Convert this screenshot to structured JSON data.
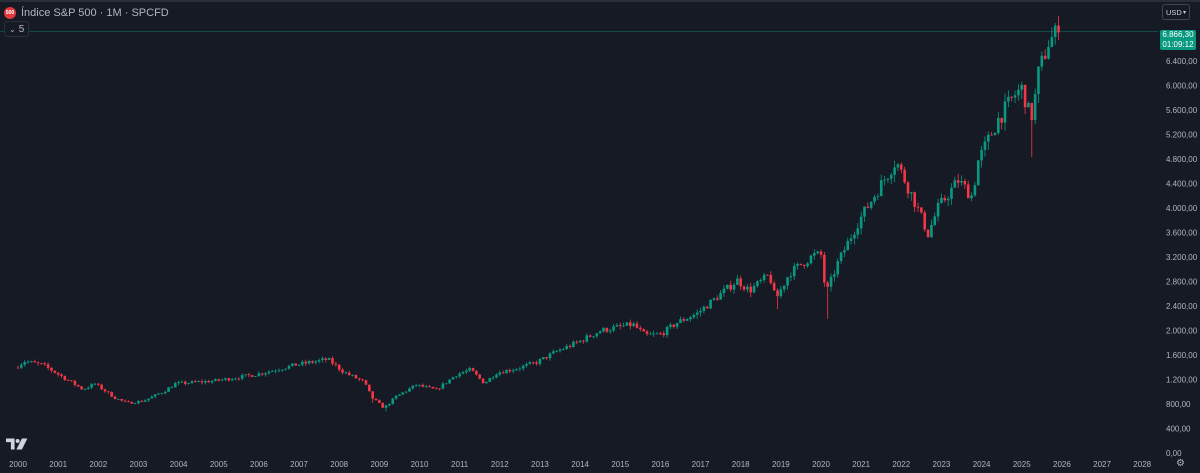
{
  "header": {
    "logo_text": "500",
    "symbol_title": "Índice S&P 500 · 1M · SPCFD",
    "collapse_count": "5",
    "currency": "USD"
  },
  "price_badge": {
    "price": "6.866,30",
    "countdown": "01:09:12"
  },
  "chart_data": {
    "type": "candlestick",
    "interval": "1M",
    "x_range": [
      2000.0,
      2028.5
    ],
    "y_range": [
      0,
      7000
    ],
    "up_color": "#089981",
    "down_color": "#f23645",
    "last_price": 6866.3,
    "x_tick_labels": [
      "2000",
      "2001",
      "2002",
      "2003",
      "2004",
      "2005",
      "2006",
      "2007",
      "2008",
      "2009",
      "2010",
      "2011",
      "2012",
      "2013",
      "2014",
      "2015",
      "2016",
      "2017",
      "2018",
      "2019",
      "2020",
      "2021",
      "2022",
      "2023",
      "2024",
      "2025",
      "2026",
      "2027",
      "2028"
    ],
    "y_tick_labels": [
      {
        "value": 0,
        "label": "0,00"
      },
      {
        "value": 400,
        "label": "400,00"
      },
      {
        "value": 800,
        "label": "800,00"
      },
      {
        "value": 1200,
        "label": "1.200,00"
      },
      {
        "value": 1600,
        "label": "1.600,00"
      },
      {
        "value": 2000,
        "label": "2.000,00"
      },
      {
        "value": 2400,
        "label": "2.400,00"
      },
      {
        "value": 2800,
        "label": "2.800,00"
      },
      {
        "value": 3200,
        "label": "3.200,00"
      },
      {
        "value": 3600,
        "label": "3.600,00"
      },
      {
        "value": 4000,
        "label": "4.000,00"
      },
      {
        "value": 4400,
        "label": "4.400,00"
      },
      {
        "value": 4800,
        "label": "4.800,00"
      },
      {
        "value": 5200,
        "label": "5.200,00"
      },
      {
        "value": 5600,
        "label": "5.600,00"
      },
      {
        "value": 6000,
        "label": "6.000,00"
      },
      {
        "value": 6400,
        "label": "6.400,00"
      }
    ],
    "close_anchors": [
      [
        2000.0,
        1394
      ],
      [
        2000.25,
        1499
      ],
      [
        2000.7,
        1436
      ],
      [
        2001.0,
        1320
      ],
      [
        2001.7,
        1040
      ],
      [
        2002.0,
        1130
      ],
      [
        2002.5,
        900
      ],
      [
        2002.8,
        815
      ],
      [
        2003.2,
        850
      ],
      [
        2003.7,
        1000
      ],
      [
        2004.0,
        1130
      ],
      [
        2005.0,
        1180
      ],
      [
        2006.0,
        1280
      ],
      [
        2007.0,
        1440
      ],
      [
        2007.8,
        1530
      ],
      [
        2008.2,
        1320
      ],
      [
        2008.7,
        1160
      ],
      [
        2008.9,
        900
      ],
      [
        2009.2,
        735
      ],
      [
        2009.5,
        920
      ],
      [
        2010.0,
        1110
      ],
      [
        2010.5,
        1030
      ],
      [
        2011.0,
        1280
      ],
      [
        2011.35,
        1360
      ],
      [
        2011.7,
        1140
      ],
      [
        2012.0,
        1310
      ],
      [
        2012.5,
        1380
      ],
      [
        2013.0,
        1480
      ],
      [
        2013.5,
        1660
      ],
      [
        2014.0,
        1800
      ],
      [
        2014.6,
        2000
      ],
      [
        2015.4,
        2100
      ],
      [
        2015.7,
        1920
      ],
      [
        2016.1,
        1940
      ],
      [
        2016.5,
        2130
      ],
      [
        2017.0,
        2280
      ],
      [
        2018.0,
        2820
      ],
      [
        2018.3,
        2650
      ],
      [
        2018.8,
        2910
      ],
      [
        2018.95,
        2500
      ],
      [
        2019.3,
        2940
      ],
      [
        2019.9,
        3230
      ],
      [
        2020.1,
        3230
      ],
      [
        2020.2,
        2580
      ],
      [
        2020.5,
        3100
      ],
      [
        2021.0,
        3760
      ],
      [
        2021.5,
        4300
      ],
      [
        2021.95,
        4770
      ],
      [
        2022.4,
        4130
      ],
      [
        2022.75,
        3580
      ],
      [
        2023.0,
        4000
      ],
      [
        2023.5,
        4450
      ],
      [
        2023.85,
        4190
      ],
      [
        2024.0,
        4770
      ],
      [
        2024.5,
        5450
      ],
      [
        2024.95,
        5880
      ],
      [
        2025.1,
        5950
      ],
      [
        2025.25,
        5580
      ],
      [
        2025.35,
        5500
      ],
      [
        2025.5,
        6200
      ],
      [
        2025.75,
        6700
      ],
      [
        2025.95,
        6866.3
      ]
    ],
    "spikes": [
      {
        "x": 2008.8,
        "low": 820
      },
      {
        "x": 2009.15,
        "low": 680
      },
      {
        "x": 2020.2,
        "low": 2190
      },
      {
        "x": 2025.26,
        "low": 4830
      },
      {
        "x": 2018.95,
        "low": 2350
      }
    ]
  }
}
